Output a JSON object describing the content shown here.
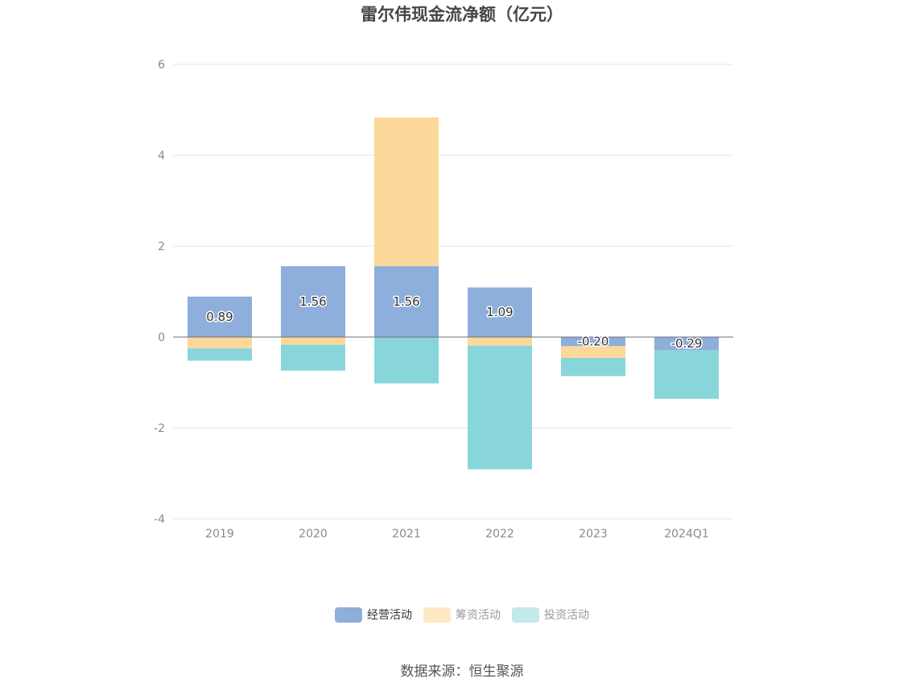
{
  "chart_data": {
    "type": "bar",
    "stacked": true,
    "title": "雷尔伟现金流净额（亿元）",
    "categories": [
      "2019",
      "2020",
      "2021",
      "2022",
      "2023",
      "2024Q1"
    ],
    "series": [
      {
        "name": "经营活动",
        "color": "#8eaedb",
        "values": [
          0.89,
          1.56,
          1.56,
          1.09,
          -0.2,
          -0.29
        ],
        "labels": [
          "0.89",
          "1.56",
          "1.56",
          "1.09",
          "-0.20",
          "-0.29"
        ]
      },
      {
        "name": "筹资活动",
        "color": "#fdd89b",
        "values": [
          -0.25,
          -0.17,
          3.27,
          -0.19,
          -0.26,
          0.0
        ]
      },
      {
        "name": "投资活动",
        "color": "#88d6d9",
        "values": [
          -0.27,
          -0.57,
          -1.02,
          -2.72,
          -0.4,
          -1.07
        ]
      }
    ],
    "yticks": [
      "6",
      "4",
      "2",
      "0",
      "-2",
      "-4"
    ],
    "ylim": [
      -4,
      6
    ],
    "grid": true,
    "legend_position": "bottom",
    "source": "数据来源：恒生聚源"
  }
}
